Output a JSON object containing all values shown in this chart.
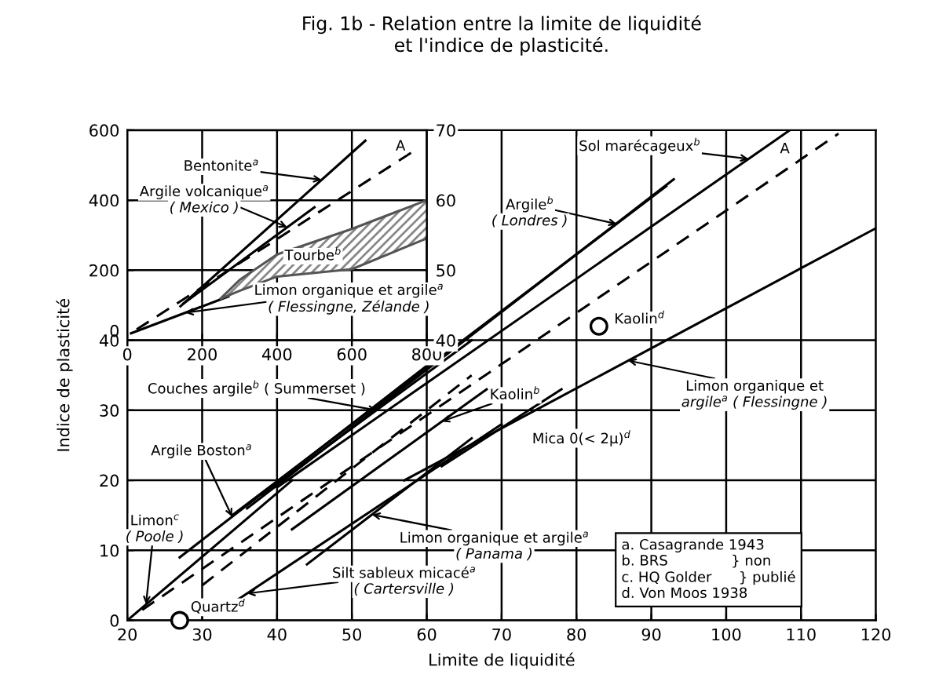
{
  "chart_data": [
    {
      "type": "line",
      "title": "Fig. 1b - Relation entre la limite de liquidité\net l'indice de plasticité.",
      "xlabel": "Limite de liquidité",
      "ylabel": "Indice de plasticité",
      "xlim": [
        20,
        120
      ],
      "xticks": [
        20,
        30,
        40,
        50,
        60,
        70,
        80,
        90,
        100,
        110,
        120
      ],
      "ylim": [
        0,
        70
      ],
      "yticks": [
        0,
        10,
        20,
        30,
        40
      ],
      "y2lim": [
        40,
        70
      ],
      "y2ticks": [
        40,
        50,
        60,
        70
      ],
      "grid": true,
      "legend": false,
      "series": [
        {
          "color": "#000000",
          "line_style": "dashed",
          "x": [
            22,
            115
          ],
          "values": [
            1.5,
            69.5
          ]
        },
        {
          "color": "#000000",
          "line_style": "dashed",
          "x": [
            30,
            66
          ],
          "values": [
            5,
            35
          ]
        },
        {
          "color": "#000000",
          "line_style": "solid",
          "x": [
            40,
            108.5
          ],
          "values": [
            19,
            70
          ]
        },
        {
          "color": "#000000",
          "line_style": "solid",
          "x": [
            34,
            92
          ],
          "values": [
            15,
            62
          ]
        },
        {
          "color": "#000000",
          "line_style": "solid",
          "x": [
            36,
            93
          ],
          "values": [
            16,
            63
          ]
        },
        {
          "color": "#000000",
          "line_style": "solid",
          "x": [
            38,
            66
          ],
          "values": [
            18,
            40
          ]
        },
        {
          "color": "#000000",
          "line_style": "solid",
          "x": [
            27,
            62
          ],
          "values": [
            9,
            38
          ]
        },
        {
          "color": "#000000",
          "line_style": "solid",
          "x": [
            20,
            42
          ],
          "values": [
            0,
            20
          ]
        },
        {
          "color": "#000000",
          "line_style": "solid",
          "x": [
            42,
            68
          ],
          "values": [
            13,
            33
          ]
        },
        {
          "color": "#000000",
          "line_style": "solid",
          "x": [
            44,
            66
          ],
          "values": [
            8,
            26
          ]
        },
        {
          "color": "#000000",
          "line_style": "solid",
          "x": [
            32,
            70
          ],
          "values": [
            1,
            28
          ]
        },
        {
          "color": "#000000",
          "line_style": "solid",
          "x": [
            57,
            120
          ],
          "values": [
            20,
            56
          ]
        },
        {
          "color": "#000000",
          "line_style": "solid",
          "x": [
            62,
            78
          ],
          "values": [
            22,
            33
          ]
        },
        {
          "type": "scatter",
          "color": "#000000",
          "marker": "circle",
          "x": [
            27,
            83
          ],
          "values": [
            0,
            42
          ]
        }
      ],
      "annotations": [
        {
          "text": "Couches argile$^{b}$ ( Summerset )",
          "x": 53.3,
          "y": 30.0
        },
        {
          "text": "Argile Boston$^{a}$",
          "x": 34,
          "y": 14.8
        },
        {
          "text": "Limon$^{c}$",
          "x": 22.5,
          "y": 2.3
        },
        "( Poole )",
        {
          "text": "Quartz$^{d}$",
          "x": 27,
          "y": 0
        },
        {
          "text": "Silt sableux micacé$^{a}$",
          "x": 36,
          "y": 3.84
        },
        "( Cartersville )",
        {
          "text": "Limon organique et argile$^{a}$",
          "x": 52.7,
          "y": 15.1
        },
        "( Panama )",
        {
          "text": "Kaolin$^{b}$",
          "x": 62,
          "y": 28.4
        },
        {
          "text": "Mica 0(< 2μ)$^{d}$",
          "x": 76,
          "y": 31.6
        },
        {
          "text": "Limon organique et",
          "x": 86.9,
          "y": 37.1
        },
        "argile$^{a}$ ( Flessingne )",
        {
          "text": "Kaolin$^{d}$",
          "x": 83,
          "y": 42
        },
        {
          "text": "Argile$^{b}$",
          "x": 85.4,
          "y": 56.6
        },
        "( Londres )",
        {
          "text": "Sol marécageux$^{b}$",
          "x": 103,
          "y": 65.9
        },
        {
          "text": "A",
          "x": 109,
          "y": 65.1
        },
        "a. Casagrande 1943\nb. BRS              } non\nc. HQ Golder      } publié\nd. Von Moos 1938"
      ]
    },
    {
      "type": "line",
      "xlim": [
        0,
        800
      ],
      "xticks": [
        0,
        200,
        400,
        600,
        800
      ],
      "ylim": [
        0,
        600
      ],
      "yticks": [
        0,
        200,
        400,
        600
      ],
      "grid": true,
      "legend": false,
      "series": [
        {
          "color": "#000000",
          "line_style": "solid",
          "x": [
            142,
            636
          ],
          "values": [
            97,
            570
          ]
        },
        {
          "color": "#000000",
          "line_style": "dashed",
          "x": [
            25,
            762
          ],
          "values": [
            31,
            538
          ]
        },
        {
          "color": "#000000",
          "line_style": "solid",
          "x": [
            150,
            500
          ],
          "values": [
            105,
            380
          ]
        },
        {
          "color": "#000000",
          "line_style": "solid",
          "x": [
            10,
            270
          ],
          "values": [
            20,
            125
          ]
        },
        {
          "color": "#555555",
          "line_style": "solid",
          "x": [
            250,
            300,
            400,
            600,
            800
          ],
          "values": [
            120,
            172,
            245,
            318,
            400
          ]
        },
        {
          "color": "#555555",
          "line_style": "solid",
          "x": [
            250,
            300,
            400,
            600,
            800
          ],
          "values": [
            119,
            141,
            182,
            203,
            291
          ]
        }
      ],
      "annotations": [
        {
          "text": "Bentonite$^{a}$",
          "x": 519,
          "y": 458
        },
        {
          "text": "Argile volcanique$^{a}$",
          "x": 427,
          "y": 323
        },
        "( Mexico )",
        "Tourbe$^{b}$",
        {
          "text": "Limon organique et argile$^{a}$",
          "x": 155,
          "y": 78.6
        },
        "( Flessingne, Zélande )",
        {
          "text": "A",
          "x": 730,
          "y": 516
        }
      ]
    }
  ]
}
